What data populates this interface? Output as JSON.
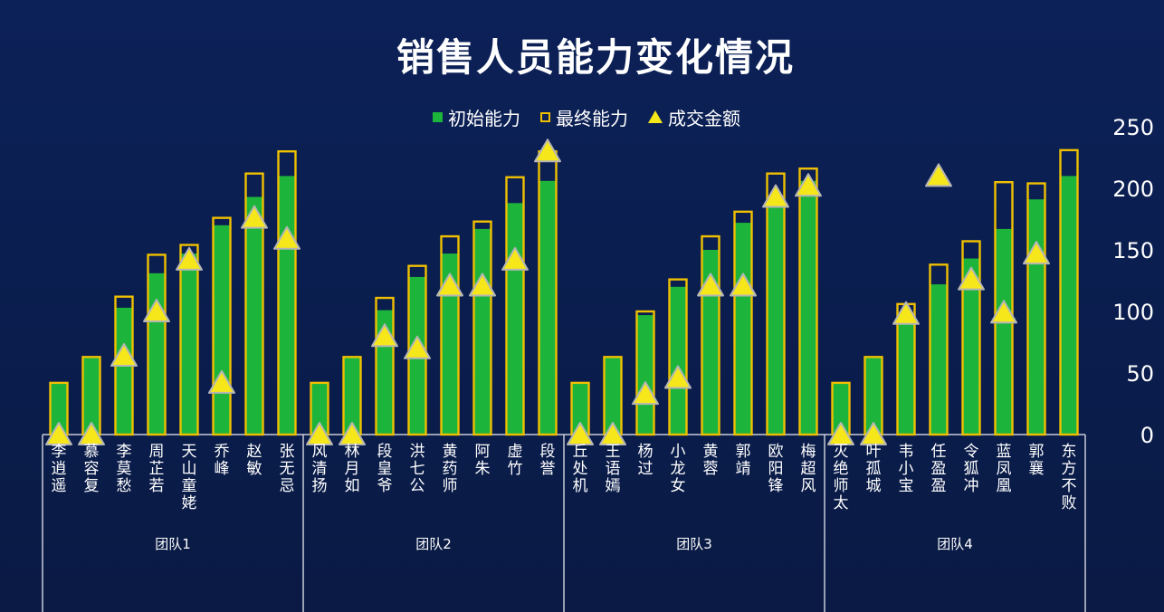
{
  "title": "销售人员能力变化情况",
  "legend": {
    "initial": "初始能力",
    "final": "最终能力",
    "deal": "成交金额"
  },
  "colors": {
    "background": "#0b1f52",
    "initial_bar": "#1db43b",
    "final_outline": "#f0c000",
    "marker_fill": "#f6e71b",
    "marker_stroke": "#b5b5b5",
    "text": "#ffffff"
  },
  "chart_data": {
    "type": "bar",
    "title": "销售人员能力变化情况",
    "y_axis": {
      "min": 0,
      "max": 250,
      "step": 50,
      "position": "right",
      "ticks": [
        "0",
        "50",
        "100",
        "150",
        "200",
        "250"
      ]
    },
    "legend_position": "top",
    "grid": false,
    "groups": [
      {
        "name": "团队1",
        "names": [
          "李逍遥",
          "慕容复",
          "李莫愁",
          "周芷若",
          "天山童姥",
          "乔峰",
          "赵敏",
          "张无忌"
        ]
      },
      {
        "name": "团队2",
        "names": [
          "风清扬",
          "林月如",
          "段皇爷",
          "洪七公",
          "黄药师",
          "阿朱",
          "虚竹",
          "段誉"
        ]
      },
      {
        "name": "团队3",
        "names": [
          "丘处机",
          "王语嫣",
          "杨过",
          "小龙女",
          "黄蓉",
          "郭靖",
          "欧阳锋",
          "梅超风"
        ]
      },
      {
        "name": "团队4",
        "names": [
          "灭绝师太",
          "叶孤城",
          "韦小宝",
          "任盈盈",
          "令狐冲",
          "蓝凤凰",
          "郭襄",
          "东方不败"
        ]
      }
    ],
    "series": [
      {
        "name": "初始能力",
        "type": "bar",
        "values": [
          42,
          63,
          103,
          131,
          147,
          170,
          193,
          210,
          42,
          63,
          101,
          128,
          147,
          167,
          188,
          206,
          42,
          63,
          97,
          120,
          150,
          172,
          190,
          206,
          42,
          63,
          96,
          122,
          143,
          167,
          191,
          210
        ]
      },
      {
        "name": "最终能力",
        "type": "bar-outline",
        "values": [
          42,
          63,
          112,
          146,
          154,
          176,
          212,
          230,
          42,
          63,
          111,
          137,
          161,
          173,
          209,
          230,
          42,
          63,
          100,
          126,
          161,
          181,
          212,
          216,
          42,
          63,
          106,
          138,
          157,
          205,
          204,
          231
        ]
      },
      {
        "name": "成交金额",
        "type": "triangle",
        "values": [
          0,
          0,
          64,
          100,
          142,
          42,
          176,
          159,
          0,
          0,
          80,
          70,
          121,
          121,
          142,
          230,
          0,
          0,
          33,
          46,
          121,
          121,
          193,
          202,
          0,
          0,
          98,
          210,
          126,
          99,
          147,
          null
        ]
      }
    ]
  }
}
